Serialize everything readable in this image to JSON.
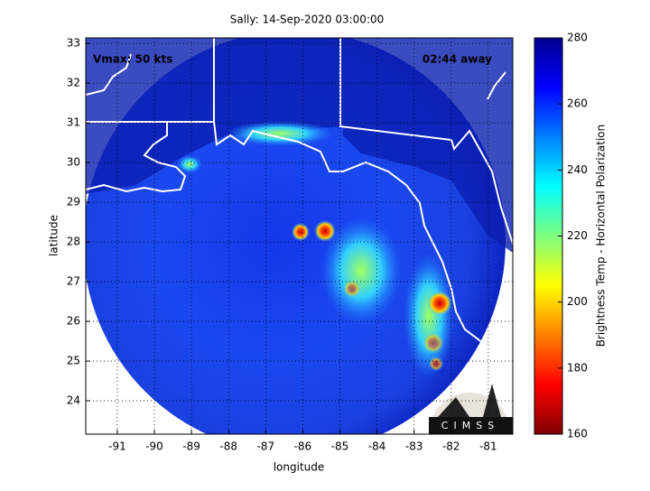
{
  "title": "Sally: 14-Sep-2020 03:00:00",
  "annotations": {
    "vmax": "Vmax: 50 kts",
    "time_away": "02:44 away"
  },
  "x_axis": {
    "label": "longitude",
    "range": [
      -91.85,
      -80.34
    ],
    "ticks": [
      -91,
      -90,
      -89,
      -88,
      -87,
      -86,
      -85,
      -84,
      -83,
      -82,
      -81
    ]
  },
  "y_axis": {
    "label": "latitude",
    "range": [
      23.16,
      33.14
    ],
    "ticks": [
      24,
      25,
      26,
      27,
      28,
      29,
      30,
      31,
      32,
      33
    ]
  },
  "colorbar": {
    "label": "Brightness Temp - Horizontal Polarization",
    "range": [
      160,
      280
    ],
    "ticks": [
      160,
      180,
      200,
      220,
      240,
      260,
      280
    ]
  },
  "logo": "CIMSS"
}
